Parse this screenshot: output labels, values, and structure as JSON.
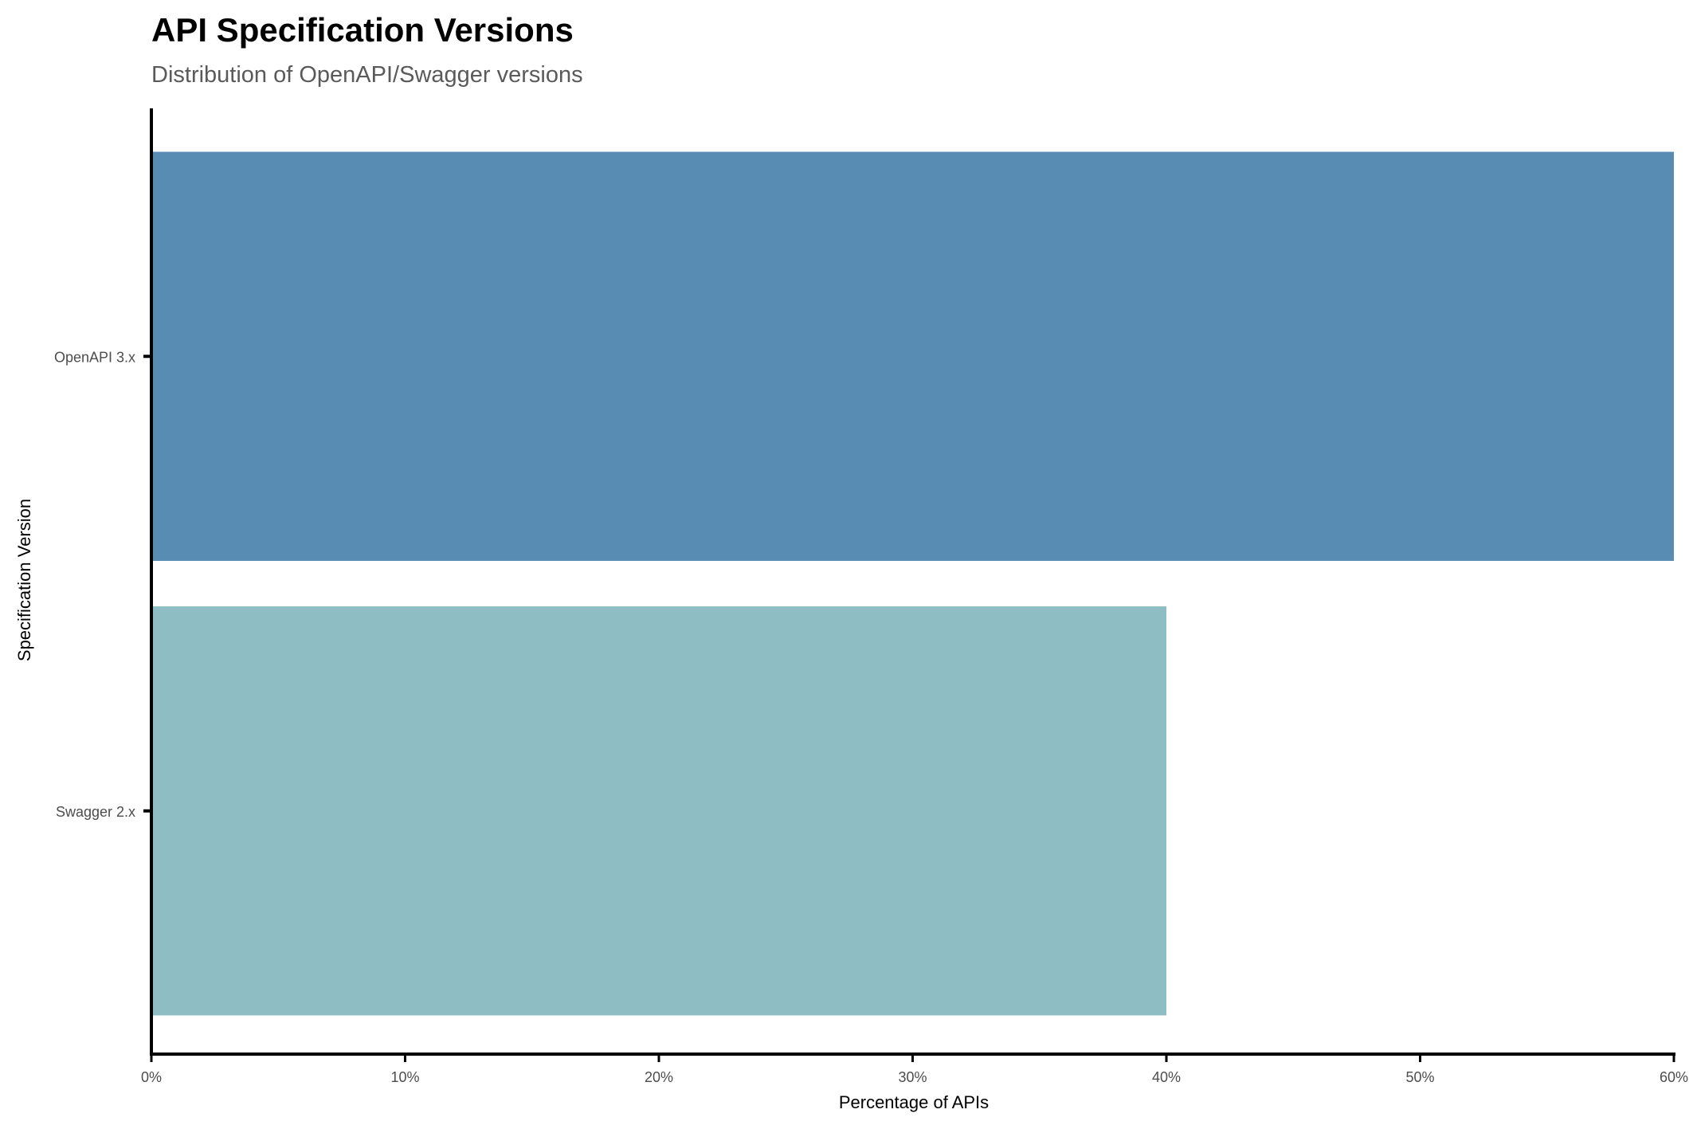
{
  "chart_data": {
    "type": "bar",
    "orientation": "horizontal",
    "title": "API Specification Versions",
    "subtitle": "Distribution of OpenAPI/Swagger versions",
    "xlabel": "Percentage of APIs",
    "ylabel": "Specification Version",
    "categories": [
      "OpenAPI 3.x",
      "Swagger 2.x"
    ],
    "values": [
      60,
      40
    ],
    "bar_colors": [
      "#588cb3",
      "#8fbdc4"
    ],
    "xlim": [
      0,
      60
    ],
    "x_ticks": [
      0,
      10,
      20,
      30,
      40,
      50,
      60
    ],
    "x_tick_labels": [
      "0%",
      "10%",
      "20%",
      "30%",
      "40%",
      "50%",
      "60%"
    ],
    "grid": false,
    "legend": "none"
  }
}
